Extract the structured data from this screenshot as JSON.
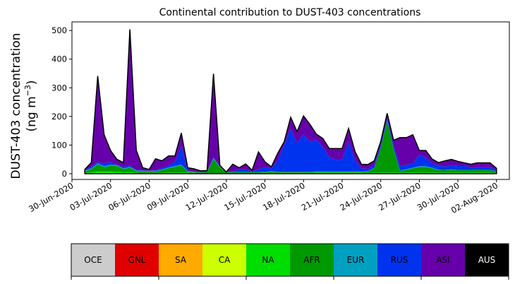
{
  "chart_data": {
    "type": "area",
    "title": "Continental contribution to DUST-403 concentrations",
    "ylabel_line1": "DUST-403 concentration",
    "ylabel_line2": "(ng m",
    "ylabel_sup": "−3",
    "ylabel_close": ")",
    "ylim": [
      -20,
      530
    ],
    "yticks": [
      0,
      100,
      200,
      300,
      400,
      500
    ],
    "x_start": "2020-06-30",
    "x_end": "2020-08-03",
    "xticks": [
      "30-Jun-2020",
      "03-Jul-2020",
      "06-Jul-2020",
      "09-Jul-2020",
      "12-Jul-2020",
      "15-Jul-2020",
      "18-Jul-2020",
      "21-Jul-2020",
      "24-Jul-2020",
      "27-Jul-2020",
      "30-Jul-2020",
      "02-Aug-2020"
    ],
    "x": [
      "2020-07-01",
      "2020-07-01T12:00",
      "2020-07-02",
      "2020-07-02T12:00",
      "2020-07-03",
      "2020-07-03T12:00",
      "2020-07-04",
      "2020-07-04T12:00",
      "2020-07-05",
      "2020-07-05T12:00",
      "2020-07-06",
      "2020-07-06T12:00",
      "2020-07-07",
      "2020-07-07T12:00",
      "2020-07-08",
      "2020-07-08T12:00",
      "2020-07-09",
      "2020-07-09T12:00",
      "2020-07-10",
      "2020-07-10T12:00",
      "2020-07-11",
      "2020-07-11T12:00",
      "2020-07-12",
      "2020-07-12T12:00",
      "2020-07-13",
      "2020-07-13T12:00",
      "2020-07-14",
      "2020-07-14T12:00",
      "2020-07-15",
      "2020-07-15T12:00",
      "2020-07-16",
      "2020-07-16T12:00",
      "2020-07-17",
      "2020-07-17T12:00",
      "2020-07-18",
      "2020-07-18T12:00",
      "2020-07-19",
      "2020-07-19T12:00",
      "2020-07-20",
      "2020-07-20T12:00",
      "2020-07-21",
      "2020-07-21T12:00",
      "2020-07-22",
      "2020-07-22T12:00",
      "2020-07-23",
      "2020-07-23T12:00",
      "2020-07-24",
      "2020-07-24T12:00",
      "2020-07-25",
      "2020-07-25T12:00",
      "2020-07-26",
      "2020-07-26T12:00",
      "2020-07-27",
      "2020-07-27T12:00",
      "2020-07-28",
      "2020-07-28T12:00",
      "2020-07-29",
      "2020-07-29T12:00",
      "2020-07-30",
      "2020-07-30T12:00",
      "2020-07-31",
      "2020-07-31T12:00",
      "2020-08-01",
      "2020-08-01T12:00",
      "2020-08-02"
    ],
    "series": [
      {
        "name": "OCE",
        "color": "#cccccc",
        "values": [
          0,
          0,
          0,
          0,
          0,
          0,
          0,
          0,
          0,
          0,
          0,
          0,
          0,
          0,
          0,
          0,
          0,
          0,
          0,
          0,
          0,
          0,
          0,
          0,
          0,
          0,
          0,
          0,
          0,
          0,
          0,
          0,
          0,
          0,
          0,
          0,
          0,
          0,
          0,
          0,
          0,
          0,
          0,
          0,
          0,
          0,
          0,
          0,
          0,
          0,
          0,
          0,
          0,
          0,
          0,
          0,
          0,
          0,
          0,
          0,
          0,
          0,
          0,
          0,
          0
        ]
      },
      {
        "name": "GNL",
        "color": "#e00000",
        "values": [
          0,
          1,
          2,
          2,
          2,
          1,
          1,
          1,
          0,
          0,
          0,
          0,
          0,
          1,
          1,
          1,
          2,
          1,
          0,
          0,
          0,
          0,
          0,
          0,
          0,
          0,
          0,
          0,
          0,
          0,
          0,
          0,
          0,
          0,
          0,
          0,
          0,
          0,
          0,
          0,
          0,
          0,
          0,
          0,
          0,
          0,
          0,
          0,
          1,
          0,
          0,
          0,
          0,
          0,
          0,
          0,
          0,
          0,
          0,
          0,
          0,
          0,
          0,
          0,
          0
        ]
      },
      {
        "name": "SA",
        "color": "#ffaa00",
        "values": [
          0,
          0,
          0,
          0,
          0,
          0,
          0,
          0,
          0,
          0,
          0,
          0,
          0,
          0,
          0,
          0,
          0,
          0,
          0,
          0,
          0,
          0,
          0,
          0,
          0,
          0,
          0,
          0,
          0,
          0,
          0,
          0,
          0,
          0,
          0,
          0,
          0,
          0,
          0,
          0,
          0,
          0,
          0,
          0,
          0,
          0,
          0,
          0,
          0,
          0,
          0,
          0,
          0,
          0,
          0,
          0,
          0,
          0,
          0,
          0,
          0,
          0,
          0,
          0,
          0
        ]
      },
      {
        "name": "CA",
        "color": "#ccff00",
        "values": [
          0,
          0,
          1,
          1,
          1,
          1,
          1,
          1,
          1,
          0,
          0,
          0,
          0,
          0,
          0,
          0,
          0,
          0,
          0,
          0,
          0,
          0,
          0,
          0,
          0,
          0,
          0,
          0,
          0,
          0,
          0,
          0,
          0,
          0,
          0,
          0,
          0,
          0,
          0,
          0,
          0,
          0,
          0,
          0,
          0,
          0,
          0,
          0,
          0,
          0,
          0,
          0,
          0,
          0,
          0,
          0,
          0,
          0,
          0,
          0,
          0,
          0,
          0,
          0,
          0
        ]
      },
      {
        "name": "NA",
        "color": "#00dd00",
        "values": [
          3,
          5,
          5,
          5,
          5,
          5,
          4,
          4,
          3,
          3,
          3,
          3,
          3,
          3,
          3,
          3,
          2,
          2,
          2,
          2,
          2,
          2,
          2,
          2,
          2,
          2,
          2,
          2,
          3,
          3,
          3,
          3,
          3,
          3,
          3,
          3,
          4,
          4,
          4,
          4,
          4,
          4,
          4,
          4,
          3,
          4,
          4,
          4,
          4,
          4,
          4,
          4,
          4,
          4,
          4,
          4,
          4,
          4,
          4,
          4,
          4,
          4,
          4,
          4,
          3
        ]
      },
      {
        "name": "AFR",
        "color": "#009900",
        "values": [
          5,
          10,
          25,
          15,
          20,
          20,
          10,
          15,
          5,
          5,
          5,
          5,
          10,
          15,
          20,
          25,
          3,
          2,
          2,
          3,
          50,
          20,
          3,
          3,
          3,
          3,
          3,
          3,
          3,
          5,
          3,
          3,
          3,
          3,
          3,
          3,
          3,
          3,
          3,
          3,
          3,
          3,
          3,
          3,
          5,
          15,
          85,
          180,
          80,
          5,
          10,
          15,
          20,
          20,
          15,
          8,
          8,
          10,
          8,
          8,
          8,
          8,
          8,
          8,
          5
        ]
      },
      {
        "name": "EUR",
        "color": "#00a0c0",
        "values": [
          2,
          3,
          3,
          3,
          3,
          3,
          3,
          3,
          3,
          3,
          2,
          2,
          2,
          3,
          3,
          3,
          2,
          2,
          1,
          1,
          2,
          2,
          1,
          1,
          1,
          1,
          1,
          1,
          1,
          1,
          1,
          1,
          1,
          1,
          1,
          1,
          1,
          1,
          1,
          1,
          1,
          1,
          1,
          1,
          1,
          1,
          1,
          2,
          2,
          2,
          2,
          2,
          2,
          2,
          2,
          2,
          1,
          1,
          1,
          1,
          1,
          1,
          1,
          1,
          1
        ]
      },
      {
        "name": "RUS",
        "color": "#0033ee",
        "values": [
          0,
          5,
          5,
          10,
          10,
          0,
          5,
          5,
          0,
          0,
          0,
          2,
          5,
          5,
          15,
          65,
          2,
          0,
          0,
          0,
          5,
          0,
          0,
          2,
          10,
          8,
          3,
          10,
          15,
          10,
          40,
          95,
          150,
          100,
          130,
          105,
          110,
          85,
          50,
          40,
          40,
          105,
          40,
          10,
          8,
          10,
          10,
          10,
          15,
          15,
          15,
          15,
          40,
          30,
          15,
          15,
          12,
          15,
          15,
          15,
          10,
          10,
          10,
          10,
          5
        ]
      },
      {
        "name": "ASI",
        "color": "#6600aa",
        "values": [
          5,
          15,
          300,
          100,
          40,
          20,
          15,
          475,
          70,
          10,
          5,
          40,
          25,
          35,
          20,
          45,
          10,
          10,
          5,
          5,
          290,
          5,
          0,
          25,
          5,
          20,
          3,
          60,
          20,
          5,
          25,
          10,
          40,
          40,
          65,
          60,
          20,
          30,
          30,
          40,
          40,
          45,
          30,
          15,
          15,
          15,
          12,
          15,
          15,
          100,
          95,
          100,
          15,
          25,
          15,
          10,
          20,
          20,
          15,
          10,
          10,
          15,
          15,
          15,
          5
        ]
      },
      {
        "name": "AUS",
        "color": "#000000",
        "values": [
          0,
          0,
          0,
          0,
          0,
          0,
          0,
          0,
          0,
          0,
          0,
          0,
          0,
          0,
          0,
          0,
          0,
          0,
          0,
          0,
          0,
          0,
          0,
          0,
          0,
          0,
          0,
          0,
          0,
          0,
          0,
          0,
          0,
          0,
          0,
          0,
          0,
          0,
          0,
          0,
          0,
          0,
          0,
          0,
          0,
          0,
          0,
          0,
          0,
          0,
          0,
          0,
          0,
          0,
          0,
          0,
          0,
          0,
          0,
          0,
          0,
          0,
          0,
          0,
          0
        ]
      }
    ]
  },
  "legend": {
    "items": [
      {
        "label": "OCE",
        "color": "#cccccc",
        "text_color": "#000000"
      },
      {
        "label": "GNL",
        "color": "#e00000",
        "text_color": "#000000"
      },
      {
        "label": "SA",
        "color": "#ffaa00",
        "text_color": "#000000"
      },
      {
        "label": "CA",
        "color": "#ccff00",
        "text_color": "#000000"
      },
      {
        "label": "NA",
        "color": "#00dd00",
        "text_color": "#000000"
      },
      {
        "label": "AFR",
        "color": "#009900",
        "text_color": "#000000"
      },
      {
        "label": "EUR",
        "color": "#00a0c0",
        "text_color": "#000000"
      },
      {
        "label": "RUS",
        "color": "#0033ee",
        "text_color": "#000000"
      },
      {
        "label": "ASI",
        "color": "#6600aa",
        "text_color": "#000000"
      },
      {
        "label": "AUS",
        "color": "#000000",
        "text_color": "#ffffff"
      }
    ]
  }
}
